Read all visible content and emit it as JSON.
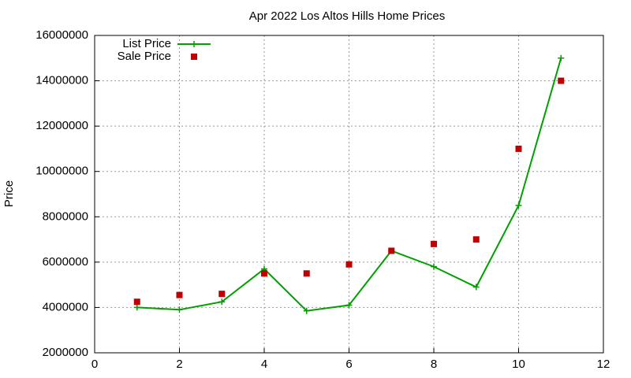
{
  "chart_data": {
    "type": "line",
    "title": "Apr 2022 Los Altos Hills Home Prices",
    "y_label": "Price",
    "x": [
      1,
      2,
      3,
      4,
      5,
      6,
      7,
      8,
      9,
      10,
      11
    ],
    "series": [
      {
        "name": "List Price",
        "color": "#00a000",
        "marker": "plus",
        "line": true,
        "values": [
          4000000,
          3900000,
          4250000,
          5700000,
          3850000,
          4100000,
          6500000,
          5800000,
          4900000,
          8500000,
          15000000
        ]
      },
      {
        "name": "Sale Price",
        "color": "#c00000",
        "marker": "square",
        "line": false,
        "values": [
          4250000,
          4550000,
          4600000,
          5500000,
          5500000,
          5900000,
          6500000,
          6800000,
          7000000,
          11000000,
          14000000
        ]
      }
    ],
    "xlim": [
      0,
      12
    ],
    "xticks": [
      0,
      2,
      4,
      6,
      8,
      10,
      12
    ],
    "ylim": [
      2000000,
      16000000
    ],
    "yticks": [
      2000000,
      4000000,
      6000000,
      8000000,
      10000000,
      12000000,
      14000000,
      16000000
    ],
    "grid": true,
    "legend": "top-left"
  }
}
